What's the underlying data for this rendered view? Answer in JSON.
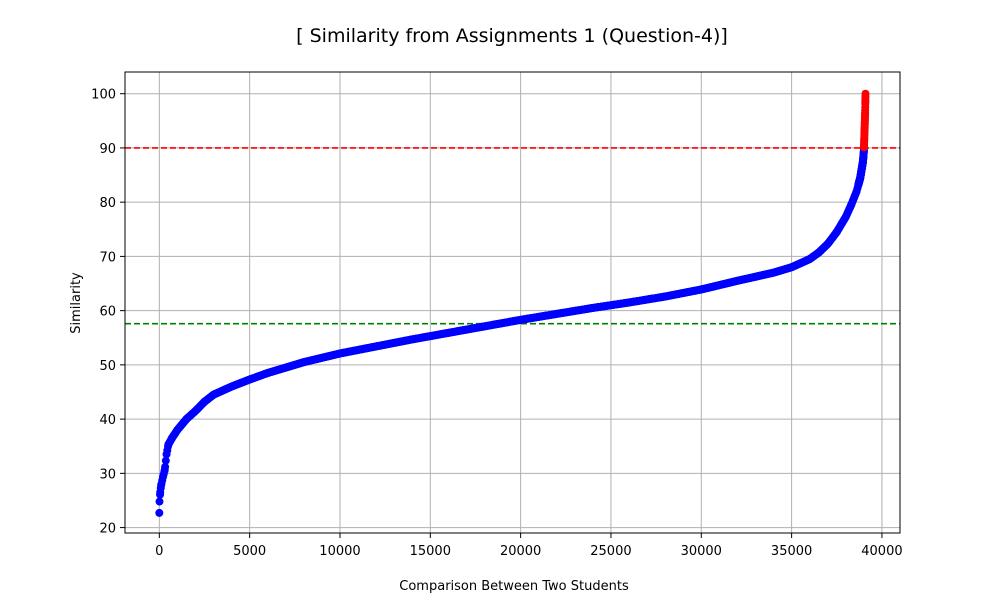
{
  "chart_data": {
    "type": "scatter",
    "title": "[ Similarity from Assignments 1 (Question-4)]",
    "xlabel": "Comparison Between Two Students",
    "ylabel": "Similarity",
    "xlim": [
      -1900,
      41000
    ],
    "ylim": [
      19,
      104
    ],
    "xticks": [
      0,
      5000,
      10000,
      15000,
      20000,
      25000,
      30000,
      35000,
      40000
    ],
    "yticks": [
      20,
      30,
      40,
      50,
      60,
      70,
      80,
      90,
      100
    ],
    "grid": true,
    "colors": {
      "below": "#0000ff",
      "above": "#ff0000",
      "upper_line": "#ff0000",
      "lower_line": "#008000",
      "grid": "#b0b0b0"
    },
    "reference_lines": [
      {
        "y": 90,
        "color": "#ff0000",
        "style": "dashed"
      },
      {
        "y": 57.6,
        "color": "#008000",
        "style": "dashed"
      }
    ],
    "curve_points": [
      [
        0,
        22.7
      ],
      [
        10,
        24.8
      ],
      [
        50,
        26.5
      ],
      [
        100,
        27.8
      ],
      [
        200,
        29.3
      ],
      [
        300,
        30.6
      ],
      [
        400,
        33.5
      ],
      [
        500,
        35.3
      ],
      [
        700,
        36.5
      ],
      [
        1000,
        38.0
      ],
      [
        1500,
        40.0
      ],
      [
        2000,
        41.5
      ],
      [
        2500,
        43.2
      ],
      [
        3000,
        44.5
      ],
      [
        4000,
        46.0
      ],
      [
        5000,
        47.3
      ],
      [
        6000,
        48.5
      ],
      [
        7000,
        49.5
      ],
      [
        8000,
        50.5
      ],
      [
        9000,
        51.3
      ],
      [
        10000,
        52.1
      ],
      [
        12000,
        53.4
      ],
      [
        14000,
        54.7
      ],
      [
        16000,
        55.9
      ],
      [
        18000,
        57.1
      ],
      [
        20000,
        58.3
      ],
      [
        22000,
        59.4
      ],
      [
        24000,
        60.5
      ],
      [
        26000,
        61.5
      ],
      [
        28000,
        62.6
      ],
      [
        30000,
        63.9
      ],
      [
        32000,
        65.5
      ],
      [
        34000,
        67.0
      ],
      [
        35000,
        68.0
      ],
      [
        36000,
        69.5
      ],
      [
        36500,
        70.7
      ],
      [
        37000,
        72.3
      ],
      [
        37500,
        74.5
      ],
      [
        38000,
        77.3
      ],
      [
        38300,
        79.5
      ],
      [
        38600,
        82.0
      ],
      [
        38800,
        84.5
      ],
      [
        38950,
        87.5
      ],
      [
        39000,
        89.5
      ],
      [
        39010,
        90.5
      ],
      [
        39020,
        91.5
      ],
      [
        39030,
        92.5
      ],
      [
        39040,
        93.5
      ],
      [
        39050,
        94.5
      ],
      [
        39060,
        95.5
      ],
      [
        39070,
        96.5
      ],
      [
        39080,
        98.5
      ],
      [
        39090,
        100.0
      ]
    ]
  }
}
